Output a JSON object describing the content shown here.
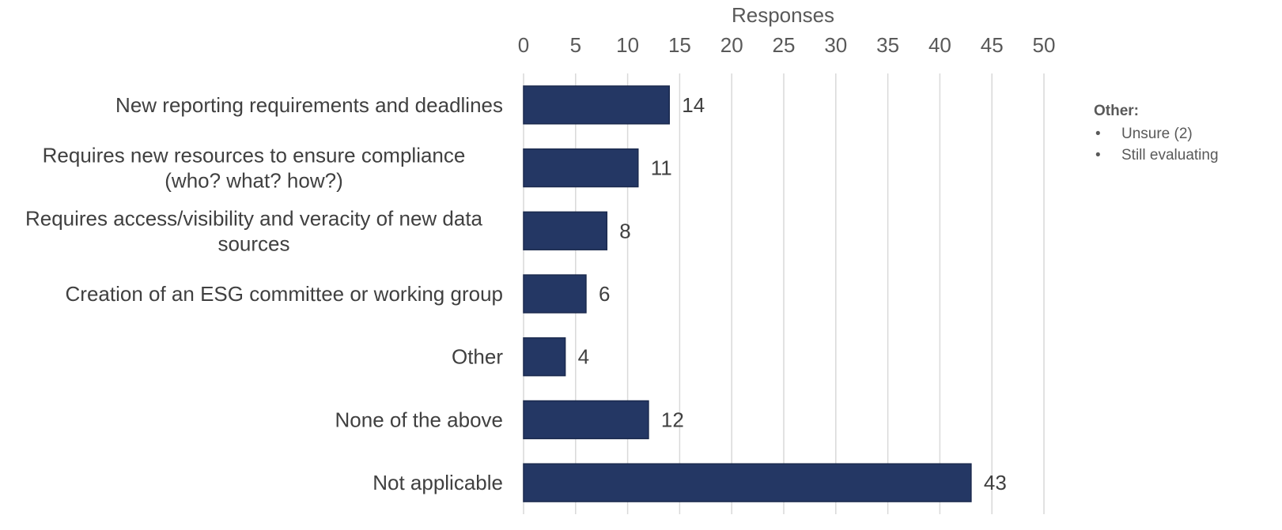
{
  "chart_data": {
    "type": "bar",
    "orientation": "horizontal",
    "title": "",
    "xlabel": "Responses",
    "ylabel": "",
    "xlim": [
      0,
      50
    ],
    "x_ticks": [
      0,
      5,
      10,
      15,
      20,
      25,
      30,
      35,
      40,
      45,
      50
    ],
    "x_axis_position": "top",
    "grid": true,
    "legend": "none",
    "bar_color": "#243764",
    "categories": [
      [
        "New reporting requirements and deadlines"
      ],
      [
        "Requires new resources to ensure compliance",
        "(who? what? how?)"
      ],
      [
        "Requires access/visibility and veracity of new data",
        "sources"
      ],
      [
        "Creation of an ESG committee or working group"
      ],
      [
        "Other"
      ],
      [
        "None of the above"
      ],
      [
        "Not applicable"
      ]
    ],
    "values": [
      14,
      11,
      8,
      6,
      4,
      12,
      43
    ]
  },
  "note": {
    "title": "Other:",
    "items": [
      "Unsure (2)",
      "Still evaluating"
    ]
  }
}
